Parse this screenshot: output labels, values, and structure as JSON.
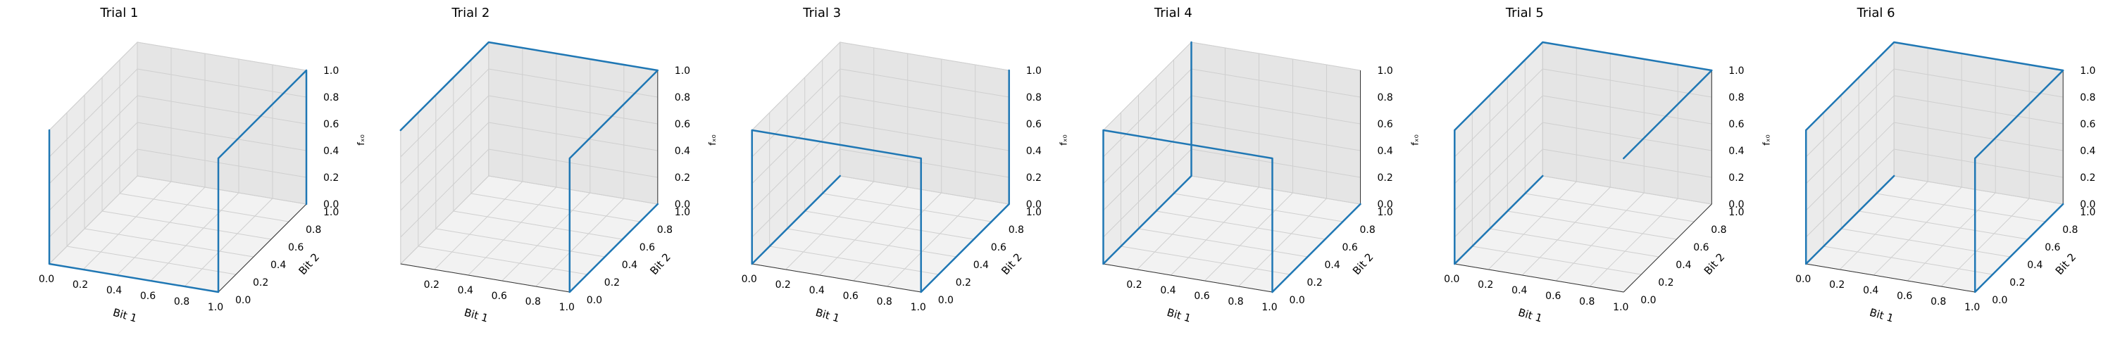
{
  "chart_data": [
    {
      "type": "line3d",
      "title": "Trial 1",
      "xlabel": "Bit 1",
      "ylabel": "Bit 2",
      "zlabel": "fₓ₀",
      "xlim": [
        0,
        1
      ],
      "ylim": [
        0,
        1
      ],
      "zlim": [
        0,
        1
      ],
      "xticks": [
        "0.0",
        "0.2",
        "0.4",
        "0.6",
        "0.8",
        "1.0"
      ],
      "yticks": [
        "0.0",
        "0.2",
        "0.4",
        "0.6",
        "0.8",
        "1.0"
      ],
      "zticks": [
        "0.0",
        "0.2",
        "0.4",
        "0.6",
        "0.8",
        "1.0"
      ],
      "grid": true,
      "color": "#1f77b4",
      "points": [
        [
          0,
          0,
          1
        ],
        [
          0,
          0,
          0
        ],
        [
          1,
          0,
          0
        ],
        [
          1,
          0,
          1
        ],
        [
          1,
          1,
          1
        ],
        [
          1,
          1,
          0
        ]
      ]
    },
    {
      "type": "line3d",
      "title": "Trial 2",
      "xlabel": "Bit 1",
      "ylabel": "Bit 2",
      "zlabel": "fₓ₀",
      "xlim": [
        0,
        1
      ],
      "ylim": [
        0,
        1
      ],
      "zlim": [
        0,
        1
      ],
      "xticks": [
        "0.2",
        "0.4",
        "0.6",
        "0.8",
        "1.0"
      ],
      "yticks": [
        "0.0",
        "0.2",
        "0.4",
        "0.6",
        "0.8",
        "1.0"
      ],
      "zticks": [
        "0.0",
        "0.2",
        "0.4",
        "0.6",
        "0.8",
        "1.0"
      ],
      "grid": true,
      "color": "#1f77b4",
      "points": [
        [
          0,
          0,
          1
        ],
        [
          0,
          1,
          1
        ],
        [
          1,
          1,
          1
        ],
        [
          1,
          0,
          1
        ],
        [
          1,
          0,
          0
        ],
        [
          1,
          1,
          0
        ]
      ]
    },
    {
      "type": "line3d",
      "title": "Trial 3",
      "xlabel": "Bit 1",
      "ylabel": "Bit 2",
      "zlabel": "fₓ₀",
      "xlim": [
        0,
        1
      ],
      "ylim": [
        0,
        1
      ],
      "zlim": [
        0,
        1
      ],
      "xticks": [
        "0.0",
        "0.2",
        "0.4",
        "0.6",
        "0.8",
        "1.0"
      ],
      "yticks": [
        "0.0",
        "0.2",
        "0.4",
        "0.6",
        "0.8",
        "1.0"
      ],
      "zticks": [
        "0.0",
        "0.2",
        "0.4",
        "0.6",
        "0.8",
        "1.0"
      ],
      "grid": true,
      "color": "#1f77b4",
      "points": [
        [
          0,
          1,
          0
        ],
        [
          0,
          0,
          0
        ],
        [
          0,
          0,
          1
        ],
        [
          1,
          0,
          1
        ],
        [
          1,
          0,
          0
        ],
        [
          1,
          1,
          0
        ],
        [
          1,
          1,
          1
        ]
      ]
    },
    {
      "type": "line3d",
      "title": "Trial 4",
      "xlabel": "Bit 1",
      "ylabel": "Bit 2",
      "zlabel": "fₓ₀",
      "xlim": [
        0,
        1
      ],
      "ylim": [
        0,
        1
      ],
      "zlim": [
        0,
        1
      ],
      "xticks": [
        "0.2",
        "0.4",
        "0.6",
        "0.8",
        "1.0"
      ],
      "yticks": [
        "0.0",
        "0.2",
        "0.4",
        "0.6",
        "0.8",
        "1.0"
      ],
      "zticks": [
        "0.0",
        "0.2",
        "0.4",
        "0.6",
        "0.8",
        "1.0"
      ],
      "grid": true,
      "color": "#1f77b4",
      "points": [
        [
          1,
          1,
          0
        ],
        [
          1,
          0,
          0
        ],
        [
          1,
          0,
          1
        ],
        [
          0,
          0,
          1
        ],
        [
          0,
          0,
          0
        ],
        [
          0,
          1,
          0
        ],
        [
          0,
          1,
          1
        ]
      ]
    },
    {
      "type": "line3d",
      "title": "Trial 5",
      "xlabel": "Bit 1",
      "ylabel": "Bit 2",
      "zlabel": "fₓ₀",
      "xlim": [
        0,
        1
      ],
      "ylim": [
        0,
        1
      ],
      "zlim": [
        0,
        1
      ],
      "xticks": [
        "0.0",
        "0.2",
        "0.4",
        "0.6",
        "0.8",
        "1.0"
      ],
      "yticks": [
        "0.0",
        "0.2",
        "0.4",
        "0.6",
        "0.8",
        "1.0"
      ],
      "zticks": [
        "0.0",
        "0.2",
        "0.4",
        "0.6",
        "0.8",
        "1.0"
      ],
      "grid": true,
      "color": "#1f77b4",
      "points": [
        [
          0,
          1,
          0
        ],
        [
          0,
          0,
          0
        ],
        [
          0,
          0,
          1
        ],
        [
          0,
          1,
          1
        ],
        [
          1,
          1,
          1
        ],
        [
          1,
          0,
          1
        ]
      ]
    },
    {
      "type": "line3d",
      "title": "Trial 6",
      "xlabel": "Bit 1",
      "ylabel": "Bit 2",
      "zlabel": "fₓ₀",
      "xlim": [
        0,
        1
      ],
      "ylim": [
        0,
        1
      ],
      "zlim": [
        0,
        1
      ],
      "xticks": [
        "0.0",
        "0.2",
        "0.4",
        "0.6",
        "0.8",
        "1.0"
      ],
      "yticks": [
        "0.0",
        "0.2",
        "0.4",
        "0.6",
        "0.8",
        "1.0"
      ],
      "zticks": [
        "0.0",
        "0.2",
        "0.4",
        "0.6",
        "0.8",
        "1.0"
      ],
      "grid": true,
      "color": "#1f77b4",
      "points": [
        [
          0,
          1,
          0
        ],
        [
          0,
          0,
          0
        ],
        [
          0,
          0,
          1
        ],
        [
          0,
          1,
          1
        ],
        [
          1,
          1,
          1
        ],
        [
          1,
          0,
          1
        ],
        [
          1,
          0,
          0
        ],
        [
          1,
          1,
          0
        ]
      ]
    }
  ]
}
